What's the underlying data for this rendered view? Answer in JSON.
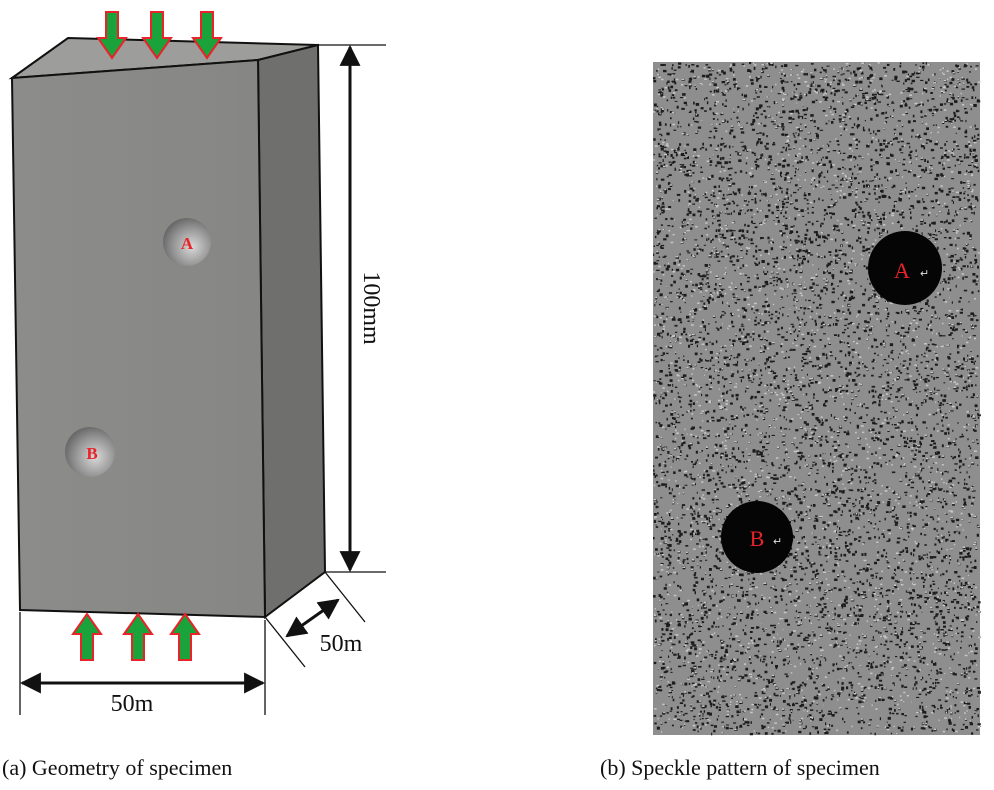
{
  "panels": [
    {
      "caption": "(a) Geometry of specimen",
      "hole_labels": [
        "A",
        "B"
      ],
      "dimensions": {
        "height": "100mm",
        "width": "50m",
        "depth": "50m"
      }
    },
    {
      "caption": "(b) Speckle pattern of specimen",
      "hole_labels": [
        "A",
        "B"
      ],
      "return_mark": "↵"
    }
  ]
}
